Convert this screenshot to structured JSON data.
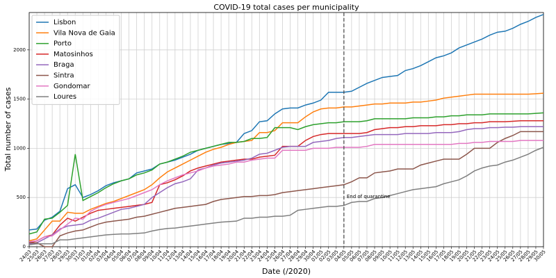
{
  "chart_data": {
    "type": "line",
    "title": "COVID-19 total cases per municipality",
    "x_label": "Date (/2020)",
    "y_label": "Total number of cases",
    "categories": [
      "24/03",
      "25/03",
      "26/03",
      "27/03",
      "28/03",
      "29/03",
      "30/03",
      "31/03",
      "01/04",
      "02/04",
      "03/04",
      "04/04",
      "05/04",
      "06/04",
      "07/04",
      "08/04",
      "09/04",
      "10/04",
      "11/04",
      "12/04",
      "13/04",
      "14/04",
      "15/04",
      "16/04",
      "17/04",
      "18/04",
      "19/04",
      "20/04",
      "21/04",
      "22/04",
      "23/04",
      "24/04",
      "25/04",
      "26/04",
      "27/04",
      "28/04",
      "29/04",
      "30/04",
      "01/05",
      "02/05",
      "03/05",
      "04/05",
      "05/05",
      "06/05",
      "07/05",
      "08/05",
      "09/05",
      "10/05",
      "11/05",
      "12/05",
      "13/05",
      "14/05",
      "15/05",
      "16/05",
      "17/05",
      "18/05",
      "19/05",
      "20/05",
      "21/05",
      "22/05",
      "23/05",
      "24/05",
      "25/05",
      "26/05",
      "27/05",
      "28/05",
      "29/05",
      "30/05"
    ],
    "series": [
      {
        "name": "Lisbon",
        "color": "#1f77b4",
        "values": [
          170,
          180,
          270,
          300,
          360,
          590,
          630,
          500,
          530,
          570,
          620,
          650,
          670,
          690,
          750,
          770,
          790,
          840,
          860,
          880,
          910,
          940,
          980,
          1000,
          1020,
          1040,
          1050,
          1060,
          1150,
          1180,
          1270,
          1280,
          1350,
          1400,
          1410,
          1410,
          1440,
          1460,
          1490,
          1570,
          1570,
          1570,
          1580,
          1620,
          1660,
          1690,
          1720,
          1730,
          1740,
          1790,
          1810,
          1840,
          1880,
          1920,
          1940,
          1970,
          2020,
          2050,
          2080,
          2110,
          2150,
          2180,
          2190,
          2220,
          2260,
          2290,
          2330,
          2360
        ]
      },
      {
        "name": "Vila Nova de Gaia",
        "color": "#ff7f0e",
        "values": [
          60,
          80,
          170,
          260,
          260,
          350,
          340,
          340,
          380,
          410,
          440,
          460,
          490,
          520,
          550,
          580,
          630,
          700,
          760,
          800,
          840,
          880,
          920,
          960,
          990,
          1010,
          1040,
          1060,
          1070,
          1080,
          1160,
          1160,
          1180,
          1260,
          1260,
          1260,
          1320,
          1370,
          1400,
          1410,
          1410,
          1420,
          1420,
          1430,
          1440,
          1450,
          1450,
          1460,
          1460,
          1460,
          1470,
          1470,
          1480,
          1490,
          1510,
          1520,
          1530,
          1540,
          1550,
          1550,
          1550,
          1550,
          1550,
          1550,
          1550,
          1550,
          1555,
          1560
        ]
      },
      {
        "name": "Porto",
        "color": "#2ca02c",
        "values": [
          130,
          150,
          280,
          290,
          350,
          420,
          940,
          470,
          510,
          550,
          600,
          640,
          670,
          690,
          730,
          750,
          780,
          840,
          860,
          890,
          920,
          960,
          980,
          1000,
          1020,
          1040,
          1060,
          1060,
          1070,
          1100,
          1100,
          1110,
          1210,
          1210,
          1210,
          1190,
          1220,
          1240,
          1250,
          1260,
          1260,
          1270,
          1270,
          1270,
          1280,
          1300,
          1300,
          1300,
          1300,
          1300,
          1310,
          1310,
          1310,
          1320,
          1320,
          1330,
          1330,
          1340,
          1340,
          1340,
          1350,
          1350,
          1350,
          1350,
          1350,
          1350,
          1355,
          1360
        ]
      },
      {
        "name": "Matosinhos",
        "color": "#d62728",
        "values": [
          40,
          60,
          100,
          120,
          220,
          290,
          260,
          300,
          340,
          370,
          380,
          390,
          400,
          410,
          420,
          430,
          450,
          630,
          650,
          680,
          720,
          770,
          800,
          820,
          840,
          860,
          870,
          880,
          890,
          890,
          910,
          920,
          930,
          1020,
          1020,
          1020,
          1080,
          1120,
          1140,
          1150,
          1150,
          1150,
          1150,
          1150,
          1160,
          1190,
          1200,
          1210,
          1210,
          1220,
          1220,
          1230,
          1230,
          1230,
          1240,
          1240,
          1250,
          1250,
          1260,
          1260,
          1270,
          1270,
          1270,
          1275,
          1280,
          1280,
          1280,
          1280
        ]
      },
      {
        "name": "Braga",
        "color": "#9467bd",
        "values": [
          30,
          40,
          80,
          120,
          180,
          210,
          220,
          230,
          270,
          290,
          320,
          350,
          380,
          390,
          410,
          430,
          500,
          550,
          600,
          640,
          660,
          690,
          780,
          800,
          830,
          850,
          860,
          870,
          880,
          900,
          940,
          950,
          980,
          1010,
          1020,
          1020,
          1020,
          1060,
          1070,
          1080,
          1100,
          1110,
          1110,
          1120,
          1130,
          1140,
          1140,
          1140,
          1140,
          1150,
          1150,
          1150,
          1150,
          1160,
          1160,
          1160,
          1170,
          1190,
          1200,
          1200,
          1210,
          1210,
          1215,
          1215,
          1220,
          1220,
          1220,
          1220
        ]
      },
      {
        "name": "Sintra",
        "color": "#8c564b",
        "values": [
          40,
          40,
          0,
          0,
          110,
          140,
          160,
          170,
          200,
          230,
          250,
          260,
          270,
          280,
          300,
          310,
          330,
          350,
          370,
          390,
          400,
          410,
          420,
          430,
          460,
          480,
          490,
          500,
          510,
          510,
          520,
          520,
          530,
          550,
          560,
          570,
          580,
          590,
          600,
          610,
          620,
          630,
          660,
          700,
          700,
          750,
          760,
          770,
          790,
          790,
          790,
          830,
          850,
          870,
          890,
          890,
          890,
          940,
          1000,
          1000,
          1000,
          1060,
          1100,
          1130,
          1170,
          1170,
          1170,
          1170
        ]
      },
      {
        "name": "Gondomar",
        "color": "#e377c2",
        "values": [
          50,
          60,
          100,
          110,
          170,
          230,
          290,
          280,
          360,
          400,
          430,
          450,
          470,
          490,
          520,
          550,
          580,
          630,
          670,
          700,
          730,
          750,
          770,
          800,
          820,
          830,
          840,
          860,
          860,
          880,
          890,
          900,
          900,
          980,
          980,
          980,
          980,
          1000,
          1000,
          1000,
          1010,
          1010,
          1010,
          1010,
          1020,
          1040,
          1040,
          1040,
          1040,
          1040,
          1040,
          1040,
          1040,
          1040,
          1040,
          1040,
          1050,
          1050,
          1060,
          1060,
          1070,
          1070,
          1070,
          1070,
          1080,
          1080,
          1080,
          1080
        ]
      },
      {
        "name": "Loures",
        "color": "#7f7f7f",
        "values": [
          20,
          30,
          30,
          30,
          70,
          70,
          80,
          90,
          100,
          110,
          120,
          125,
          130,
          130,
          135,
          140,
          160,
          175,
          185,
          190,
          200,
          210,
          220,
          230,
          240,
          250,
          255,
          260,
          290,
          290,
          300,
          300,
          310,
          310,
          320,
          370,
          380,
          390,
          400,
          410,
          410,
          420,
          450,
          460,
          460,
          490,
          500,
          520,
          540,
          560,
          580,
          590,
          600,
          610,
          640,
          660,
          680,
          720,
          770,
          800,
          820,
          830,
          860,
          880,
          910,
          940,
          980,
          1010
        ]
      }
    ],
    "ylim": [
      0,
      2380
    ],
    "yticks": [
      0,
      500,
      1000,
      1500,
      2000
    ],
    "grid": true,
    "legend": "upper left",
    "annotation": {
      "text": "End of quarantine",
      "x": "04/05"
    }
  }
}
